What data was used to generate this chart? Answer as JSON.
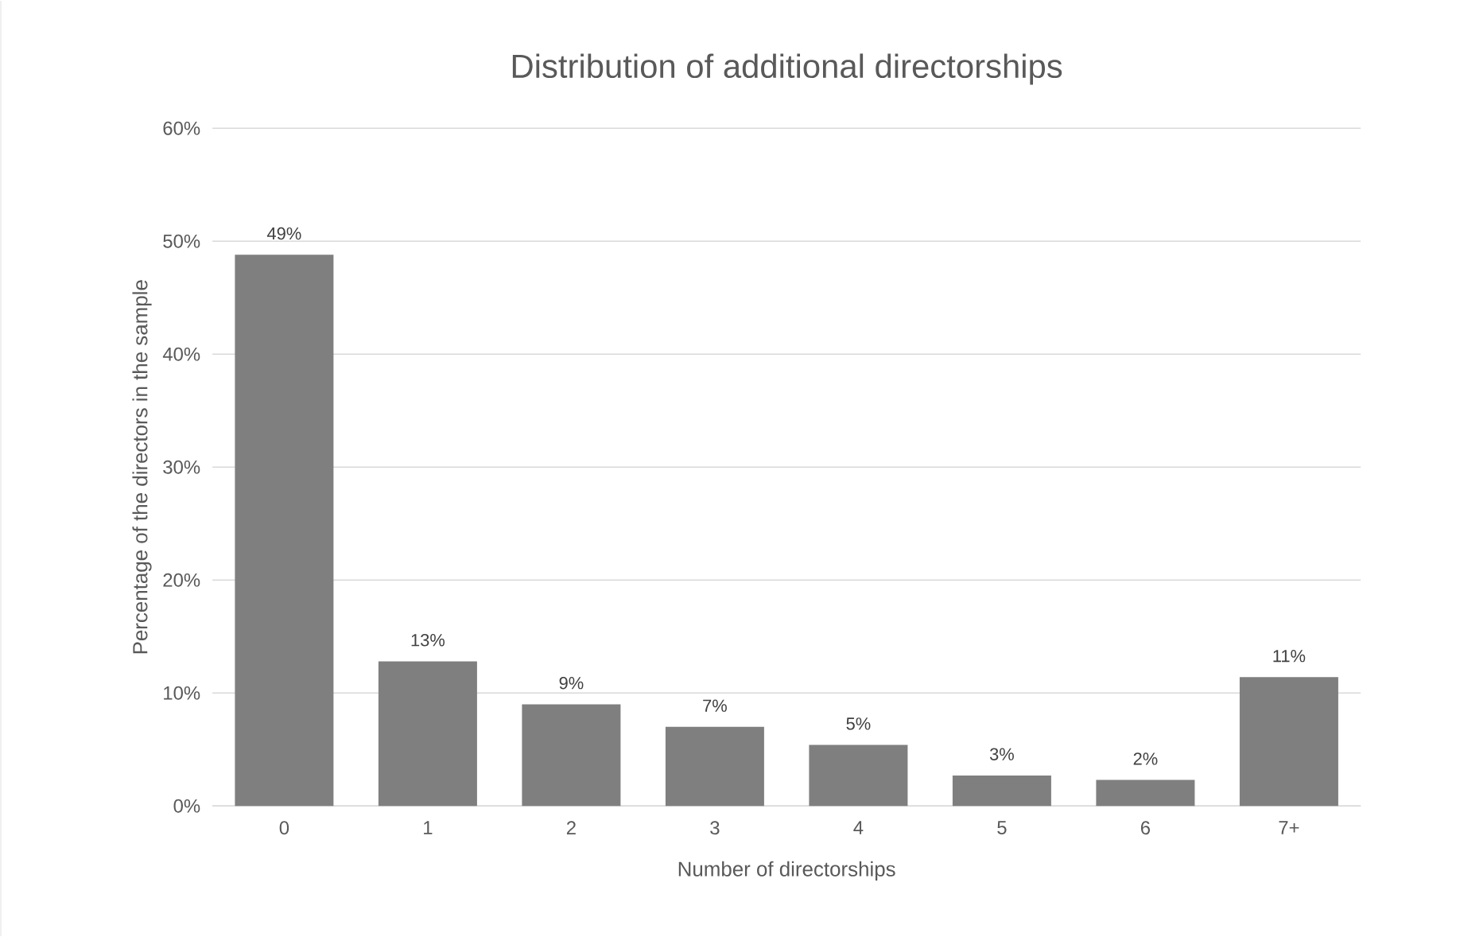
{
  "chart_data": {
    "type": "bar",
    "title": "Distribution of additional directorships",
    "xlabel": "Number of directorships",
    "ylabel": "Percentage of the directors in the sample",
    "categories": [
      "0",
      "1",
      "2",
      "3",
      "4",
      "5",
      "6",
      "7+"
    ],
    "values": [
      48.8,
      12.8,
      9.0,
      7.0,
      5.4,
      2.7,
      2.3,
      11.4
    ],
    "value_labels": [
      "49%",
      "13%",
      "9%",
      "7%",
      "5%",
      "3%",
      "2%",
      "11%"
    ],
    "color": "#7f7f7f",
    "ylim": [
      0,
      60
    ],
    "yticks": [
      {
        "value": 0,
        "label": "0%"
      },
      {
        "value": 10,
        "label": "10%"
      },
      {
        "value": 20,
        "label": "20%"
      },
      {
        "value": 30,
        "label": "30%"
      },
      {
        "value": 40,
        "label": "40%"
      },
      {
        "value": 50,
        "label": "50%"
      },
      {
        "value": 60,
        "label": "60%"
      }
    ],
    "grid": "y"
  }
}
